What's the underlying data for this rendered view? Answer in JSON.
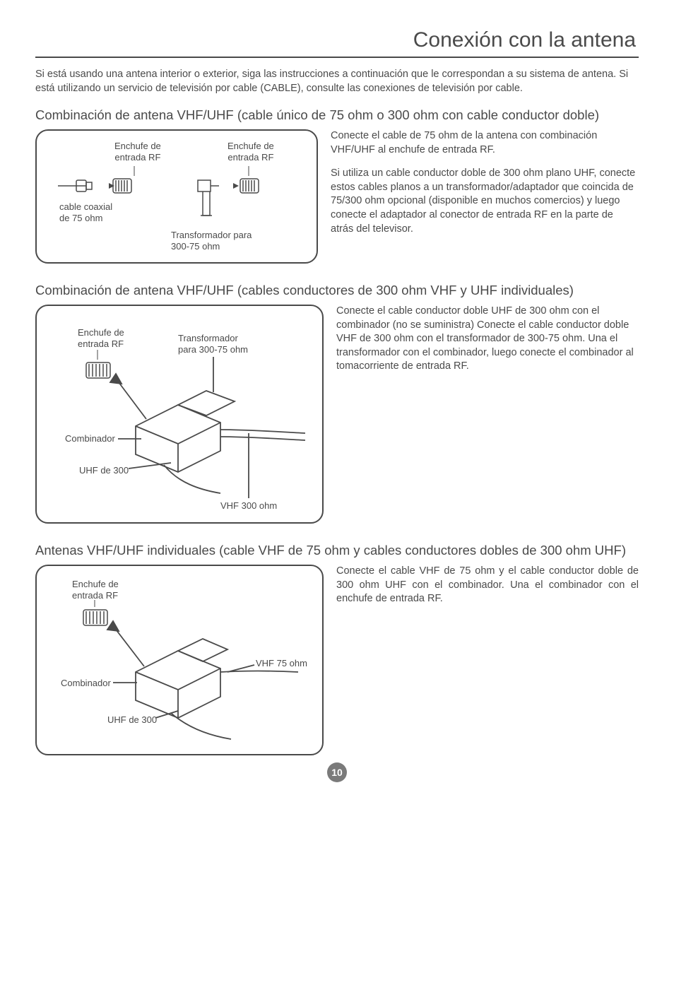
{
  "page": {
    "title": "Conexión con la antena",
    "intro": "Si está usando una antena interior o exterior, siga las instrucciones a continuación que le correspondan a su sistema de antena. Si está utilizando un servicio de televisión por cable (CABLE), consulte las conexiones de televisión por cable.",
    "page_number": "10"
  },
  "section1": {
    "heading": "Combinación de antena VHF/UHF (cable único de 75 ohm o 300 ohm con cable conductor doble)",
    "para1": "Conecte el cable de 75 ohm de la antena con combinación VHF/UHF al enchufe de entrada RF.",
    "para2": "Si utiliza un cable conductor doble de 300 ohm plano UHF, conecte estos cables planos a un transformador/adaptador que coincida de 75/300 ohm opcional (disponible en muchos comercios) y luego conecte el adaptador al conector de entrada RF en la parte de atrás del televisor.",
    "diagram": {
      "label_rf1": "Enchufe de\nentrada RF",
      "label_rf2": "Enchufe de\nentrada RF",
      "label_coax": "cable   coaxial\nde 75 ohm",
      "label_trans": "Transformador para\n300-75 ohm"
    }
  },
  "section2": {
    "heading": "Combinación de antena VHF/UHF (cables conductores de 300 ohm VHF y UHF individuales)",
    "para1": "Conecte el cable conductor doble UHF de 300 ohm con el combinador (no se suministra) Conecte el cable conductor doble VHF de 300 ohm con el transformador de 300-75 ohm. Una el transformador con el combinador, luego conecte el combinador al tomacorriente de entrada RF.",
    "diagram": {
      "label_rf": "Enchufe de\nentrada RF",
      "label_trans": "Transformador\npara 300-75 ohm",
      "label_comb": "Combinador",
      "label_uhf": "UHF de 300",
      "label_vhf": "VHF 300 ohm"
    }
  },
  "section3": {
    "heading": "Antenas VHF/UHF individuales (cable VHF de 75 ohm y cables conductores dobles de 300 ohm UHF)",
    "para1": "Conecte el cable VHF de 75 ohm y el cable conductor doble de 300 ohm UHF con el combinador. Una el combinador con el enchufe de entrada RF.",
    "diagram": {
      "label_rf": "Enchufe de\nentrada RF",
      "label_comb": "Combinador",
      "label_uhf": "UHF de 300",
      "label_vhf": "VHF 75 ohm"
    }
  },
  "style": {
    "text_color": "#4a4a4a",
    "background": "#ffffff",
    "title_fontsize": 30,
    "heading_fontsize": 18.5,
    "body_fontsize": 14.5,
    "label_fontsize": 13,
    "border_radius": 18,
    "border_width": 2
  }
}
